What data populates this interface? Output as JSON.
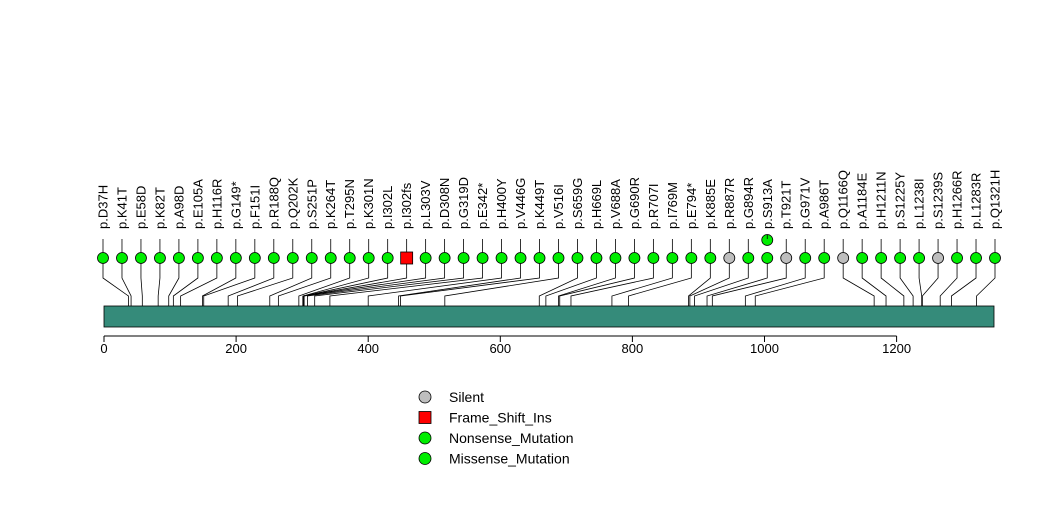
{
  "chart_data": {
    "type": "lollipop",
    "title": "",
    "protein_length": 1342,
    "x_ticks": [
      0,
      200,
      400,
      600,
      800,
      1000,
      1200
    ],
    "colors": {
      "Silent": "#BEBEBE",
      "Frame_Shift_Ins": "#FF0000",
      "Nonsense_Mutation": "#00EE00",
      "Missense_Mutation": "#00EE00",
      "protein_bar": "#358B7A"
    },
    "legend": {
      "position": "bottom-center",
      "entries": [
        {
          "label": "Silent",
          "shape": "circle",
          "class": "Silent"
        },
        {
          "label": "Frame_Shift_Ins",
          "shape": "square",
          "class": "Frame_Shift_Ins"
        },
        {
          "label": "Nonsense_Mutation",
          "shape": "circle",
          "class": "Nonsense_Mutation"
        },
        {
          "label": "Missense_Mutation",
          "shape": "circle",
          "class": "Missense_Mutation"
        }
      ]
    },
    "mutations": [
      {
        "label": "p.D37H",
        "pos": 37,
        "class": "Missense_Mutation"
      },
      {
        "label": "p.K41T",
        "pos": 41,
        "class": "Missense_Mutation"
      },
      {
        "label": "p.E58D",
        "pos": 58,
        "class": "Missense_Mutation"
      },
      {
        "label": "p.K82T",
        "pos": 82,
        "class": "Missense_Mutation"
      },
      {
        "label": "p.A98D",
        "pos": 98,
        "class": "Missense_Mutation"
      },
      {
        "label": "p.E105A",
        "pos": 105,
        "class": "Missense_Mutation"
      },
      {
        "label": "p.H116R",
        "pos": 116,
        "class": "Missense_Mutation"
      },
      {
        "label": "p.G149*",
        "pos": 149,
        "class": "Nonsense_Mutation"
      },
      {
        "label": "p.F151I",
        "pos": 151,
        "class": "Missense_Mutation"
      },
      {
        "label": "p.R188Q",
        "pos": 188,
        "class": "Missense_Mutation"
      },
      {
        "label": "p.Q202K",
        "pos": 202,
        "class": "Missense_Mutation"
      },
      {
        "label": "p.S251P",
        "pos": 251,
        "class": "Missense_Mutation"
      },
      {
        "label": "p.K264T",
        "pos": 264,
        "class": "Missense_Mutation"
      },
      {
        "label": "p.T295N",
        "pos": 295,
        "class": "Missense_Mutation"
      },
      {
        "label": "p.K301N",
        "pos": 301,
        "class": "Missense_Mutation"
      },
      {
        "label": "p.I302L",
        "pos": 302,
        "class": "Missense_Mutation"
      },
      {
        "label": "p.I302fs",
        "pos": 302,
        "class": "Frame_Shift_Ins"
      },
      {
        "label": "p.L303V",
        "pos": 303,
        "class": "Missense_Mutation"
      },
      {
        "label": "p.D308N",
        "pos": 308,
        "class": "Missense_Mutation"
      },
      {
        "label": "p.G319D",
        "pos": 319,
        "class": "Missense_Mutation"
      },
      {
        "label": "p.E342*",
        "pos": 342,
        "class": "Nonsense_Mutation"
      },
      {
        "label": "p.H400Y",
        "pos": 400,
        "class": "Missense_Mutation"
      },
      {
        "label": "p.V446G",
        "pos": 446,
        "class": "Missense_Mutation"
      },
      {
        "label": "p.K449T",
        "pos": 449,
        "class": "Missense_Mutation"
      },
      {
        "label": "p.V516I",
        "pos": 516,
        "class": "Missense_Mutation"
      },
      {
        "label": "p.S659G",
        "pos": 659,
        "class": "Missense_Mutation"
      },
      {
        "label": "p.H669L",
        "pos": 669,
        "class": "Missense_Mutation"
      },
      {
        "label": "p.V688A",
        "pos": 688,
        "class": "Missense_Mutation"
      },
      {
        "label": "p.G690R",
        "pos": 690,
        "class": "Missense_Mutation"
      },
      {
        "label": "p.R707I",
        "pos": 707,
        "class": "Missense_Mutation"
      },
      {
        "label": "p.I769M",
        "pos": 769,
        "class": "Missense_Mutation"
      },
      {
        "label": "p.E794*",
        "pos": 794,
        "class": "Nonsense_Mutation"
      },
      {
        "label": "p.K885E",
        "pos": 885,
        "class": "Missense_Mutation"
      },
      {
        "label": "p.R887R",
        "pos": 887,
        "class": "Silent"
      },
      {
        "label": "p.G894R",
        "pos": 894,
        "class": "Missense_Mutation"
      },
      {
        "label": "p.S913A",
        "pos": 913,
        "class": "Missense_Mutation",
        "stack": 2
      },
      {
        "label": "p.T921T",
        "pos": 921,
        "class": "Silent"
      },
      {
        "label": "p.G971V",
        "pos": 971,
        "class": "Missense_Mutation"
      },
      {
        "label": "p.A986T",
        "pos": 986,
        "class": "Missense_Mutation"
      },
      {
        "label": "p.Q1166Q",
        "pos": 1166,
        "class": "Silent"
      },
      {
        "label": "p.A1184E",
        "pos": 1184,
        "class": "Missense_Mutation"
      },
      {
        "label": "p.H1211N",
        "pos": 1211,
        "class": "Missense_Mutation"
      },
      {
        "label": "p.S1225Y",
        "pos": 1225,
        "class": "Missense_Mutation"
      },
      {
        "label": "p.L1238I",
        "pos": 1238,
        "class": "Missense_Mutation"
      },
      {
        "label": "p.S1239S",
        "pos": 1239,
        "class": "Silent"
      },
      {
        "label": "p.H1266R",
        "pos": 1266,
        "class": "Missense_Mutation"
      },
      {
        "label": "p.L1283R",
        "pos": 1283,
        "class": "Missense_Mutation"
      },
      {
        "label": "p.Q1321H",
        "pos": 1321,
        "class": "Missense_Mutation"
      }
    ]
  }
}
